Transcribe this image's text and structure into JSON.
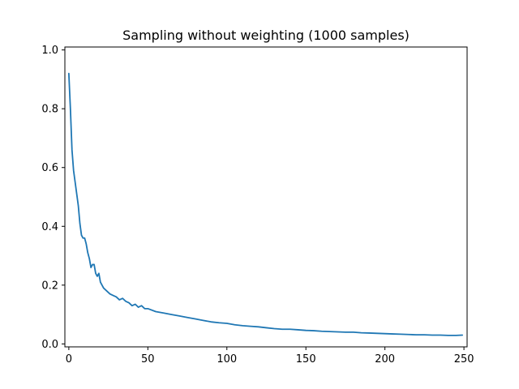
{
  "chart_data": {
    "type": "line",
    "title": "Sampling without weighting (1000 samples)",
    "xlabel": "",
    "ylabel": "",
    "xlim": [
      -2.5,
      252
    ],
    "ylim": [
      -0.01,
      1.01
    ],
    "x_ticks": [
      0,
      50,
      100,
      150,
      200,
      250
    ],
    "y_ticks": [
      0.0,
      0.2,
      0.4,
      0.6,
      0.8,
      1.0
    ],
    "x_tick_labels": [
      "0",
      "50",
      "100",
      "150",
      "200",
      "250"
    ],
    "y_tick_labels": [
      "0.0",
      "0.2",
      "0.4",
      "0.6",
      "0.8",
      "1.0"
    ],
    "grid": false,
    "line_color": "#1f77b4",
    "series": [
      {
        "x": [
          0,
          1,
          2,
          3,
          4,
          5,
          6,
          7,
          8,
          9,
          10,
          11,
          12,
          13,
          14,
          15,
          16,
          17,
          18,
          19,
          20,
          22,
          24,
          26,
          28,
          30,
          32,
          34,
          36,
          38,
          40,
          42,
          44,
          46,
          48,
          50,
          55,
          60,
          65,
          70,
          75,
          80,
          85,
          90,
          95,
          100,
          105,
          110,
          115,
          120,
          125,
          130,
          135,
          140,
          145,
          150,
          155,
          160,
          165,
          170,
          175,
          180,
          185,
          190,
          195,
          200,
          205,
          210,
          215,
          220,
          225,
          230,
          235,
          240,
          245,
          249
        ],
        "values": [
          0.92,
          0.8,
          0.66,
          0.59,
          0.55,
          0.51,
          0.47,
          0.41,
          0.37,
          0.36,
          0.36,
          0.34,
          0.31,
          0.29,
          0.26,
          0.27,
          0.27,
          0.24,
          0.23,
          0.24,
          0.21,
          0.19,
          0.18,
          0.17,
          0.165,
          0.16,
          0.15,
          0.155,
          0.145,
          0.14,
          0.13,
          0.135,
          0.125,
          0.13,
          0.12,
          0.12,
          0.11,
          0.105,
          0.1,
          0.095,
          0.09,
          0.085,
          0.08,
          0.075,
          0.072,
          0.07,
          0.065,
          0.062,
          0.06,
          0.058,
          0.055,
          0.052,
          0.05,
          0.05,
          0.048,
          0.046,
          0.045,
          0.043,
          0.042,
          0.041,
          0.04,
          0.04,
          0.038,
          0.037,
          0.036,
          0.035,
          0.034,
          0.033,
          0.032,
          0.031,
          0.031,
          0.03,
          0.03,
          0.029,
          0.029,
          0.03
        ]
      }
    ]
  }
}
